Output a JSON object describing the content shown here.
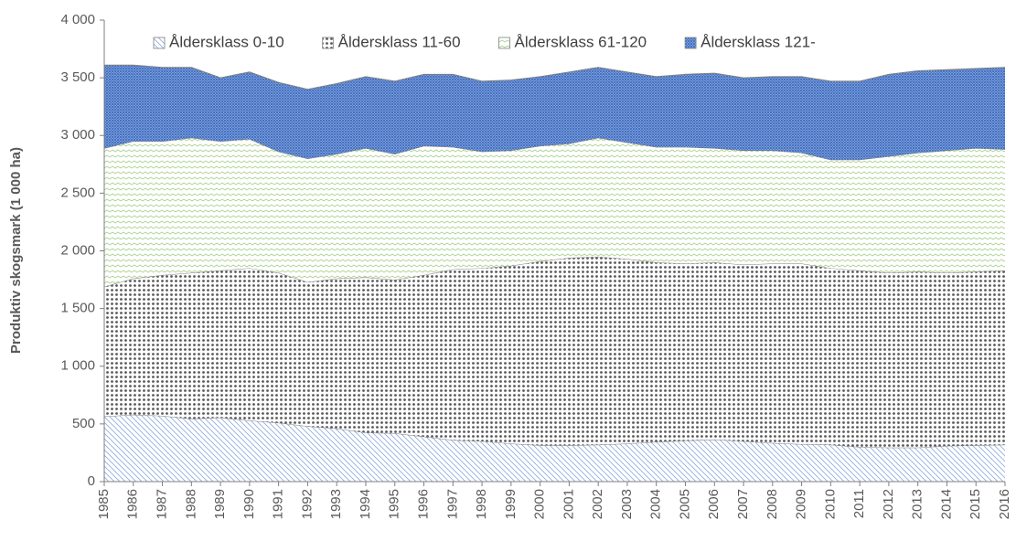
{
  "chart_data": {
    "type": "stacked_area",
    "y_label": "Produktiv skogsmark (1 000 ha)",
    "categories": [
      "1985",
      "1986",
      "1987",
      "1988",
      "1989",
      "1990",
      "1991",
      "1992",
      "1993",
      "1994",
      "1995",
      "1996",
      "1997",
      "1998",
      "1999",
      "2000",
      "2001",
      "2002",
      "2003",
      "2004",
      "2005",
      "2006",
      "2007",
      "2008",
      "2009",
      "2010",
      "2011",
      "2012",
      "2013",
      "2014",
      "2015",
      "2016"
    ],
    "series": [
      {
        "name": "Åldersklass 0-10",
        "color": "#8faadc",
        "pattern": "diagonal",
        "values": [
          565,
          580,
          570,
          545,
          555,
          530,
          510,
          480,
          460,
          425,
          420,
          390,
          360,
          350,
          330,
          315,
          315,
          320,
          330,
          345,
          355,
          365,
          350,
          335,
          325,
          320,
          300,
          295,
          295,
          310,
          315,
          320
        ]
      },
      {
        "name": "Åldersklass 11-60",
        "color": "#595959",
        "pattern": "dots",
        "values": [
          1125,
          1180,
          1220,
          1265,
          1275,
          1320,
          1300,
          1250,
          1300,
          1345,
          1330,
          1400,
          1480,
          1500,
          1540,
          1595,
          1625,
          1630,
          1600,
          1555,
          1535,
          1535,
          1530,
          1555,
          1565,
          1530,
          1530,
          1515,
          1525,
          1500,
          1505,
          1510
        ]
      },
      {
        "name": "Åldersklass 61-120",
        "color": "#a9d18e",
        "pattern": "zigzag",
        "values": [
          1200,
          1190,
          1160,
          1170,
          1120,
          1120,
          1050,
          1070,
          1080,
          1120,
          1090,
          1120,
          1060,
          1010,
          1000,
          1000,
          990,
          1030,
          1010,
          1000,
          1010,
          990,
          990,
          980,
          960,
          940,
          960,
          1010,
          1030,
          1060,
          1070,
          1050
        ]
      },
      {
        "name": "Åldersklass 121-",
        "color": "#4472c4",
        "pattern": "dense",
        "values": [
          720,
          660,
          640,
          610,
          550,
          580,
          600,
          600,
          610,
          620,
          630,
          620,
          630,
          610,
          610,
          600,
          620,
          610,
          610,
          610,
          630,
          650,
          630,
          640,
          660,
          680,
          680,
          710,
          710,
          700,
          690,
          710
        ]
      }
    ],
    "ylim": [
      0,
      4000
    ],
    "yticks": [
      0,
      500,
      {
        "value": 1000,
        "label": "1 000"
      },
      {
        "value": 1500,
        "label": "1 500"
      },
      {
        "value": 2000,
        "label": "2 000"
      },
      {
        "value": 2500,
        "label": "2 500"
      },
      {
        "value": 3000,
        "label": "3 000"
      },
      {
        "value": 3500,
        "label": "3 500"
      },
      {
        "value": 4000,
        "label": "4 000"
      }
    ],
    "legend": "top"
  }
}
